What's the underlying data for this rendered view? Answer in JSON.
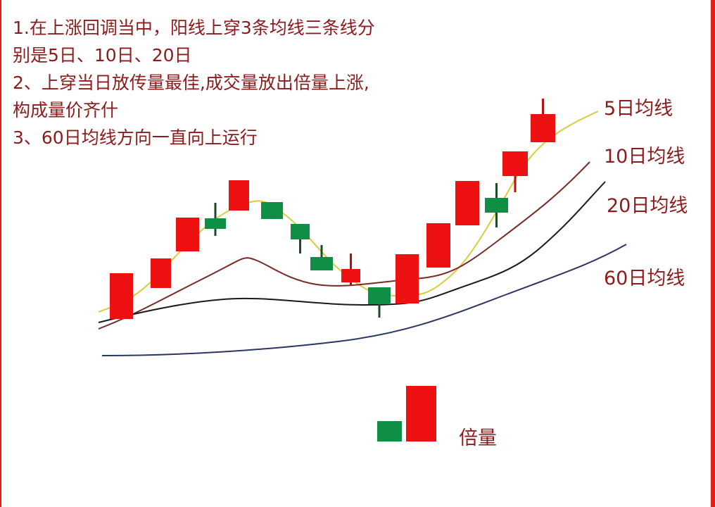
{
  "notes": [
    "1.在上涨回调当中，阳线上穿3条均线三条线分",
    "别是5日、10日、20日",
    "2、上穿当日放传量最佳,成交量放出倍量上涨,",
    "构成量价齐什",
    "3、60日均线方向一直向上运行"
  ],
  "ma_labels": {
    "ma5": "5日均线",
    "ma10": "10日均线",
    "ma20": "20日均线",
    "ma60": "60日均线"
  },
  "volume_label": "倍量",
  "colors": {
    "up": "#ee1111",
    "down": "#0f8f45",
    "ma5": "#d8cc3a",
    "ma10": "#7a2a24",
    "ma20": "#1a1a1a",
    "ma60": "#2a3566",
    "text": "#8e1b1b"
  },
  "candles": [
    "up",
    "up",
    "up",
    "down",
    "up",
    "down",
    "down",
    "down",
    "up",
    "down",
    "up",
    "up",
    "up",
    "down",
    "up",
    "up"
  ],
  "volume_bars": [
    "down",
    "up"
  ]
}
